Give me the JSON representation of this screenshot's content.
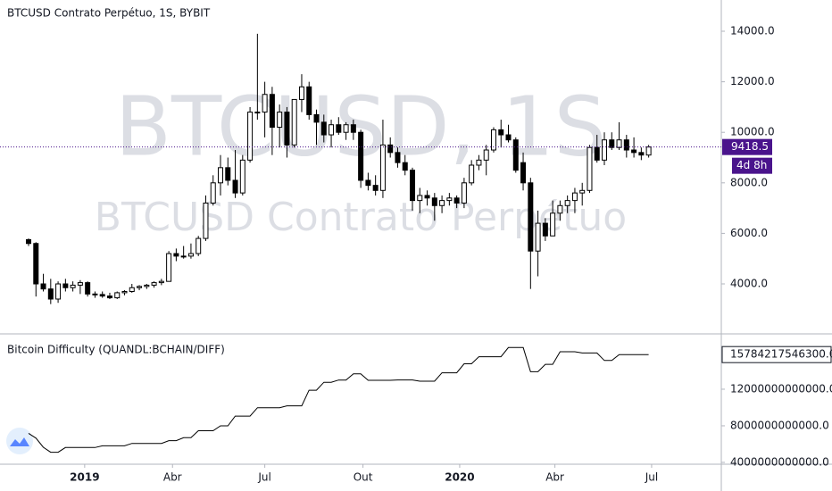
{
  "chart_data": [
    {
      "type": "candlestick",
      "title": "BTCUSD Contrato Perpétuo, 1S, BYBIT",
      "watermark": "BTCUSD, 1S",
      "watermark_subtitle": "BTCUSD Contrato Perpétuo",
      "countdown": "4d 8h",
      "grid": false,
      "up_color": "#ffffff",
      "down_color": "#000000",
      "wick_color": "#000000",
      "last_price_color": "#4a148c",
      "xlim": [
        -3.87,
        93.84
      ],
      "ylim": [
        2057,
        15237
      ],
      "yticks": [
        {
          "value": 4000,
          "label": "4000.0"
        },
        {
          "value": 6000,
          "label": "6000.0"
        },
        {
          "value": 8000,
          "label": "8000.0"
        },
        {
          "value": 10000,
          "label": "10000.0"
        },
        {
          "value": 12000,
          "label": "12000.0"
        },
        {
          "value": 14000,
          "label": "14000.0"
        }
      ],
      "open": [
        5750,
        5600,
        4000,
        3800,
        3400,
        4000,
        3850,
        3950,
        4050,
        3600,
        3580,
        3520,
        3450,
        3650,
        3700,
        3850,
        3900,
        3950,
        4050,
        4100,
        5200,
        5100,
        5100,
        5200,
        5800,
        7200,
        8000,
        8600,
        8100,
        7600,
        8900,
        10800,
        10800,
        11500,
        10200,
        10800,
        9500,
        11300,
        11800,
        10700,
        10400,
        9900,
        10300,
        10000,
        10300,
        10000,
        8100,
        7900,
        7700,
        9500,
        9200,
        8800,
        8500,
        7300,
        7500,
        7400,
        7100,
        7300,
        7400,
        7200,
        8000,
        8700,
        8900,
        9300,
        10100,
        9900,
        9700,
        8800,
        8000,
        5300,
        6400,
        5900,
        6800,
        7100,
        7300,
        7600,
        7700,
        9400,
        8900,
        9700,
        9400,
        9700,
        9300,
        9200,
        9100
      ],
      "high": [
        5800,
        5650,
        4400,
        4200,
        4100,
        4200,
        4100,
        4150,
        4100,
        3700,
        3700,
        3650,
        3700,
        3750,
        4000,
        3950,
        4000,
        4100,
        4200,
        5300,
        5400,
        5500,
        5600,
        5900,
        7500,
        8300,
        9100,
        9000,
        9300,
        9100,
        11000,
        13900,
        12000,
        11800,
        11100,
        11000,
        11300,
        12300,
        12000,
        10900,
        10700,
        10500,
        10600,
        10400,
        10500,
        10100,
        8400,
        8300,
        10500,
        9800,
        9400,
        9100,
        8600,
        7800,
        7700,
        7600,
        7500,
        7600,
        7500,
        8200,
        8900,
        9100,
        9500,
        10200,
        10500,
        10300,
        9800,
        9200,
        8200,
        6900,
        6600,
        7300,
        7300,
        7500,
        7800,
        8000,
        9500,
        9900,
        10000,
        10000,
        10400,
        9900,
        9800,
        9400,
        9500
      ],
      "low": [
        5500,
        3500,
        3700,
        3200,
        3250,
        3700,
        3700,
        3600,
        3500,
        3450,
        3450,
        3400,
        3400,
        3550,
        3650,
        3750,
        3800,
        3850,
        3950,
        4100,
        4900,
        5000,
        5000,
        5100,
        5700,
        7100,
        7500,
        7900,
        7400,
        7500,
        8800,
        10500,
        9800,
        9100,
        9400,
        9000,
        9400,
        10800,
        10500,
        9500,
        9600,
        9400,
        9900,
        9700,
        9700,
        7800,
        7700,
        7500,
        7400,
        9000,
        8600,
        8300,
        6900,
        6800,
        7100,
        6500,
        6800,
        7100,
        7000,
        7000,
        7900,
        8500,
        8300,
        9200,
        9400,
        9600,
        8400,
        7700,
        3800,
        4300,
        5700,
        5900,
        6500,
        6800,
        6800,
        7100,
        7600,
        8800,
        8700,
        9300,
        9300,
        9000,
        9000,
        8900,
        9000
      ],
      "close": [
        5600,
        4000,
        3800,
        3400,
        4000,
        3850,
        3950,
        4050,
        3600,
        3580,
        3520,
        3450,
        3650,
        3700,
        3850,
        3900,
        3950,
        4050,
        4100,
        5200,
        5100,
        5100,
        5200,
        5800,
        7200,
        8000,
        8600,
        8100,
        7600,
        8900,
        10800,
        10800,
        11500,
        10200,
        10800,
        9500,
        11300,
        11800,
        10700,
        10400,
        9900,
        10300,
        10000,
        10300,
        10000,
        8100,
        7900,
        7700,
        9500,
        9200,
        8800,
        8500,
        7300,
        7500,
        7400,
        7100,
        7300,
        7400,
        7200,
        8000,
        8700,
        8900,
        9300,
        10100,
        9900,
        9700,
        8500,
        8000,
        5300,
        6400,
        5900,
        6800,
        7100,
        7300,
        7600,
        7700,
        9400,
        8900,
        9700,
        9400,
        9700,
        9300,
        9200,
        9100,
        9418.5
      ]
    },
    {
      "type": "line",
      "title": "Bitcoin Difficulty (QUANDL:BCHAIN/DIFF)",
      "color": "#000000",
      "xlim": [
        -3.87,
        93.84
      ],
      "xticks": [
        {
          "value": 7.6,
          "label": "2019"
        },
        {
          "value": 19.5,
          "label": "Abr"
        },
        {
          "value": 32.0,
          "label": "Jul"
        },
        {
          "value": 45.3,
          "label": "Out"
        },
        {
          "value": 58.4,
          "label": "2020"
        },
        {
          "value": 71.3,
          "label": "Abr"
        },
        {
          "value": 84.4,
          "label": "Jul"
        }
      ],
      "ylim": [
        3800000000000.0,
        17950000000000.0
      ],
      "yticks": [
        {
          "value": 4000000000000.0,
          "label": "4000000000000.0"
        },
        {
          "value": 8000000000000.0,
          "label": "8000000000000.0"
        },
        {
          "value": 12000000000000.0,
          "label": "12000000000000.0"
        }
      ],
      "last_value_label": "15784217546300.0",
      "values": [
        7180000000000.0,
        6650000000000.0,
        5650000000000.0,
        5110000000000.0,
        5110000000000.0,
        5620000000000.0,
        5620000000000.0,
        5620000000000.0,
        5620000000000.0,
        5620000000000.0,
        5810000000000.0,
        5810000000000.0,
        5810000000000.0,
        5810000000000.0,
        6070000000000.0,
        6070000000000.0,
        6070000000000.0,
        6070000000000.0,
        6070000000000.0,
        6380000000000.0,
        6380000000000.0,
        6700000000000.0,
        6700000000000.0,
        7460000000000.0,
        7460000000000.0,
        7460000000000.0,
        8000000000000.0,
        8000000000000.0,
        9060000000000.0,
        9060000000000.0,
        9060000000000.0,
        9980000000000.0,
        9980000000000.0,
        9980000000000.0,
        9980000000000.0,
        10180000000000.0,
        10180000000000.0,
        10180000000000.0,
        11890000000000.0,
        11890000000000.0,
        12760000000000.0,
        12760000000000.0,
        13000000000000.0,
        13000000000000.0,
        13690000000000.0,
        13690000000000.0,
        12970000000000.0,
        12970000000000.0,
        12970000000000.0,
        12970000000000.0,
        13010000000000.0,
        13010000000000.0,
        13010000000000.0,
        12880000000000.0,
        12880000000000.0,
        12880000000000.0,
        13790000000000.0,
        13790000000000.0,
        13790000000000.0,
        14780000000000.0,
        14780000000000.0,
        15550000000000.0,
        15550000000000.0,
        15550000000000.0,
        15550000000000.0,
        16550000000000.0,
        16550000000000.0,
        16550000000000.0,
        13910000000000.0,
        13910000000000.0,
        14720000000000.0,
        14720000000000.0,
        16100000000000.0,
        16100000000000.0,
        16100000000000.0,
        15960000000000.0,
        15960000000000.0,
        15960000000000.0,
        15140000000000.0,
        15140000000000.0,
        15780000000000.0,
        15780000000000.0,
        15780000000000.0,
        15780000000000.0,
        15784217546300
      ]
    }
  ]
}
